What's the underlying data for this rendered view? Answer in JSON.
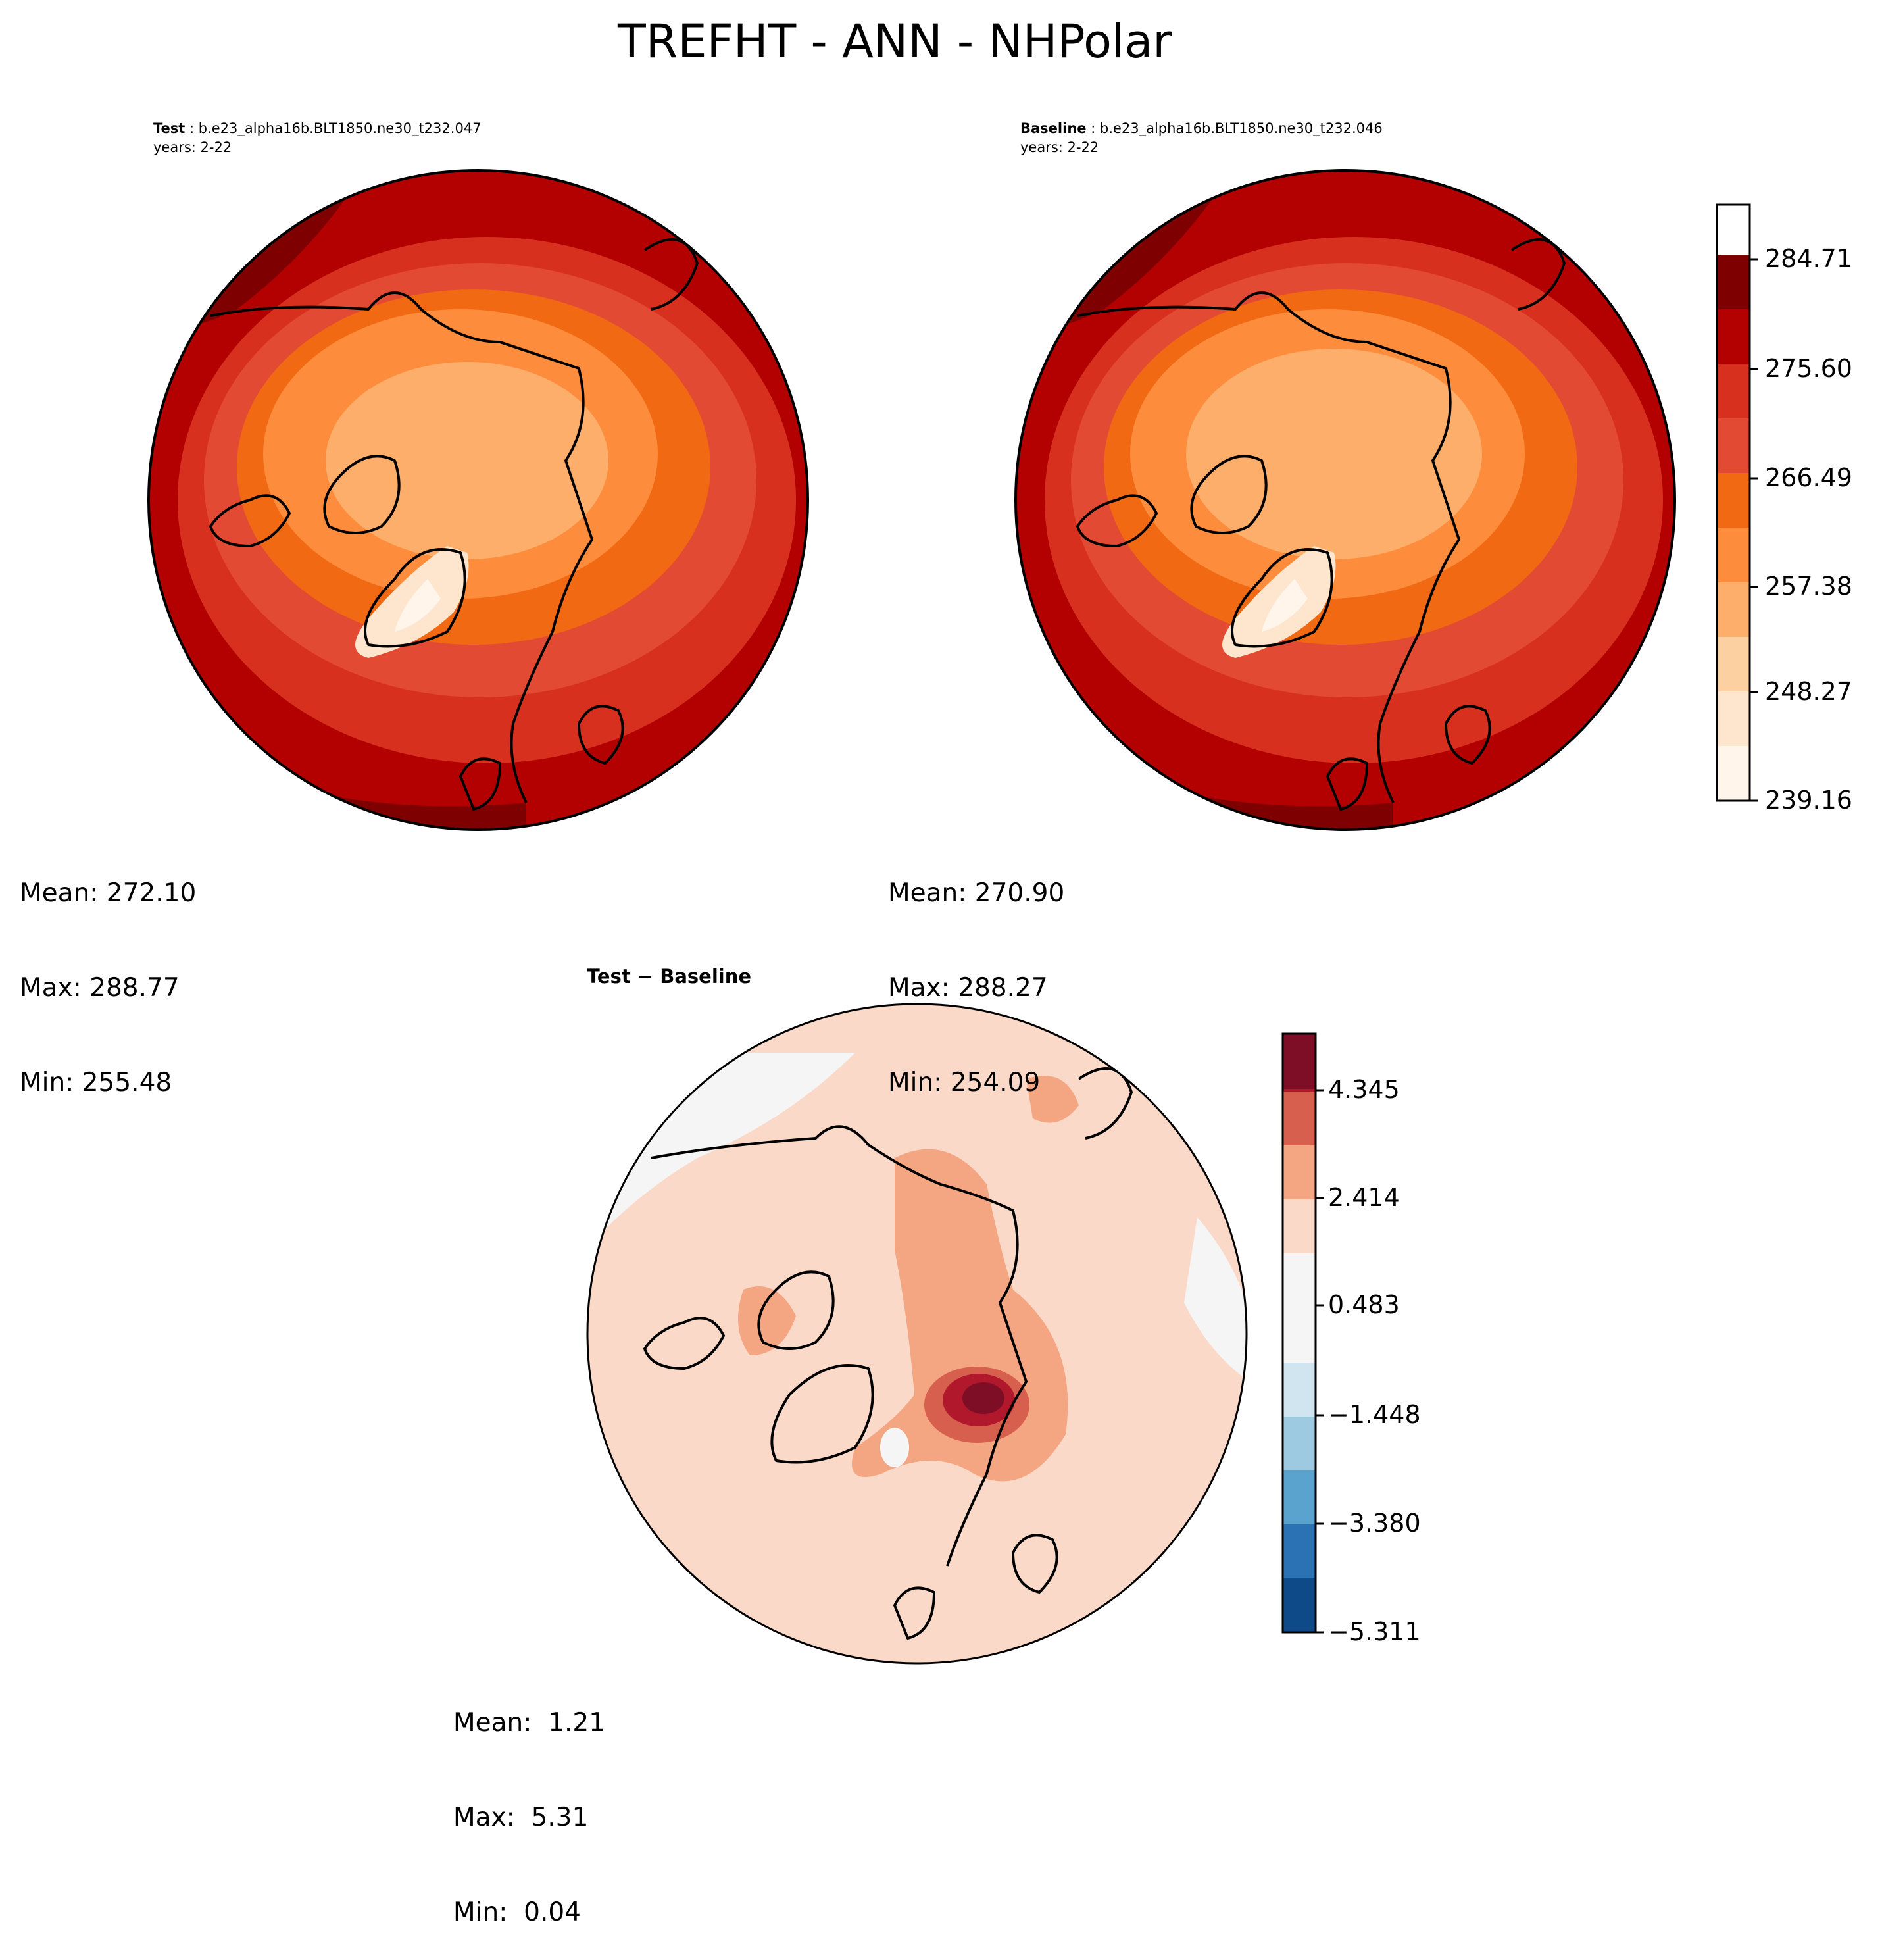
{
  "figure": {
    "title": "TREFHT - ANN - NHPolar"
  },
  "panels": {
    "test": {
      "label": "Test",
      "case": " : b.e23_alpha16b.BLT1850.ne30_t232.047",
      "years": "years: 2-22",
      "stats": {
        "mean": "Mean: 272.10",
        "max": "Max: 288.77",
        "min": "Min: 255.48"
      }
    },
    "baseline": {
      "label": "Baseline",
      "case": " : b.e23_alpha16b.BLT1850.ne30_t232.046",
      "years": "years: 2-22",
      "stats": {
        "mean": "Mean: 270.90",
        "max": "Max: 288.27",
        "min": "Min: 254.09"
      }
    },
    "diff": {
      "label": "Test − Baseline",
      "stats": {
        "mean": "Mean:  1.21",
        "max": "Max:  5.31",
        "min": "Min:  0.04"
      }
    }
  },
  "colorbars": {
    "main": {
      "ticks": [
        "284.71",
        "275.60",
        "266.49",
        "257.38",
        "248.27",
        "239.16"
      ],
      "colors": [
        "#fff5eb",
        "#fee6ce",
        "#fdd0a2",
        "#fdae6b",
        "#fd8d3c",
        "#f16913",
        "#e34a33",
        "#d7301f",
        "#b30000",
        "#7f0000"
      ],
      "scheme": "OrRd"
    },
    "diff": {
      "ticks": [
        "4.345",
        "2.414",
        "0.483",
        "−1.448",
        "−3.380",
        "−5.311"
      ],
      "colors": [
        "#0f4a88",
        "#2b72b4",
        "#5ba3cf",
        "#9ecae1",
        "#d1e5f0",
        "#f5f5f5",
        "#fbd9c8",
        "#f4a582",
        "#d6604d",
        "#b2182b",
        "#7d0e25"
      ],
      "scheme": "RdBu_r"
    }
  }
}
